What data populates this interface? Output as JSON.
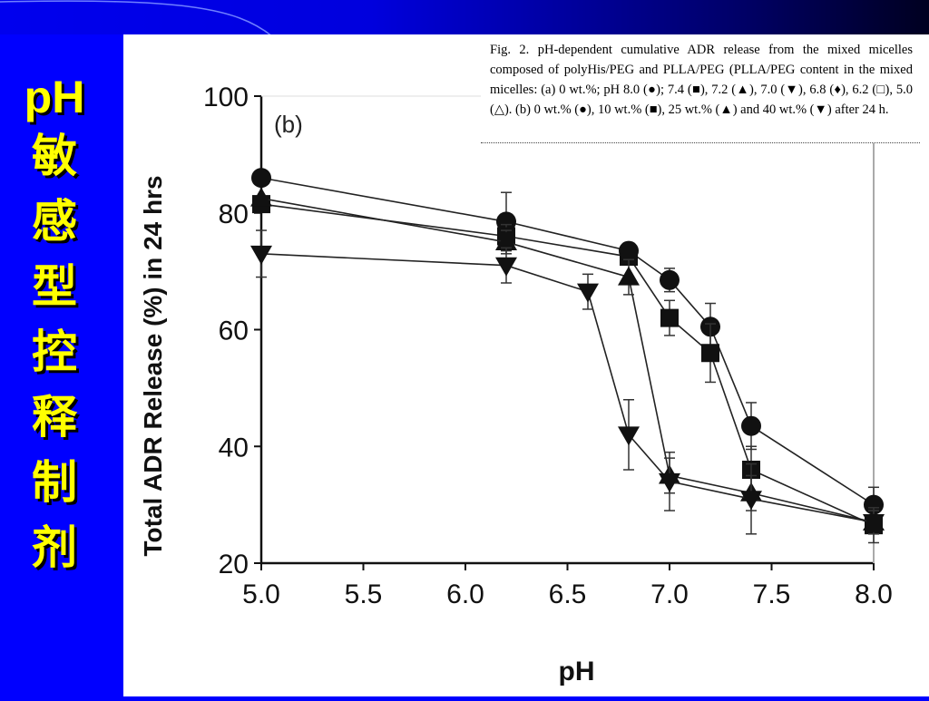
{
  "slide": {
    "title_latin": "pH",
    "title_chars": [
      "敏",
      "感",
      "型",
      "控",
      "释",
      "制",
      "剂"
    ],
    "colors": {
      "background": "#0000ff",
      "title": "#ffff00"
    }
  },
  "caption": "Fig. 2. pH-dependent cumulative ADR release from the mixed micelles composed of polyHis/PEG and PLLA/PEG (PLLA/PEG content in the mixed micelles: (a) 0 wt.%; pH 8.0 (●); 7.4 (■), 7.2 (▲), 7.0 (▼), 6.8 (♦), 6.2 (□), 5.0 (△). (b) 0 wt.% (●), 10 wt.% (■), 25 wt.% (▲) and 40 wt.% (▼) after 24 h.",
  "chart_data": {
    "type": "line",
    "panel_label": "(b)",
    "xlabel": "pH",
    "ylabel": "Total ADR Release (%) in 24 hrs",
    "xlim": [
      5.0,
      8.0
    ],
    "ylim": [
      20,
      100
    ],
    "xticks": [
      "5.0",
      "5.5",
      "6.0",
      "6.5",
      "7.0",
      "7.5",
      "8.0"
    ],
    "yticks": [
      "20",
      "40",
      "60",
      "80",
      "100"
    ],
    "grid": false,
    "series": [
      {
        "marker": "circle",
        "x": [
          5.0,
          6.2,
          6.8,
          7.0,
          7.2,
          7.4,
          8.0
        ],
        "y": [
          86,
          78.5,
          73.5,
          68.5,
          60.5,
          43.5,
          30
        ],
        "err": [
          0,
          5,
          0,
          2,
          4,
          4,
          3
        ]
      },
      {
        "marker": "square",
        "x": [
          5.0,
          6.2,
          6.8,
          7.0,
          7.2,
          7.4,
          8.0
        ],
        "y": [
          81.5,
          76,
          72.5,
          62,
          56,
          36,
          26.5
        ],
        "err": [
          0,
          2,
          0,
          3,
          5,
          4,
          3
        ]
      },
      {
        "marker": "triangle-up",
        "x": [
          5.0,
          6.2,
          6.8,
          7.0,
          7.4,
          8.0
        ],
        "y": [
          82.5,
          75,
          69,
          35,
          32,
          27
        ],
        "err": [
          0,
          2,
          3,
          3,
          3,
          2
        ]
      },
      {
        "marker": "triangle-down",
        "x": [
          5.0,
          6.2,
          6.6,
          6.8,
          7.0,
          7.4,
          8.0
        ],
        "y": [
          73,
          71,
          66.5,
          42,
          34,
          31,
          27
        ],
        "err": [
          4,
          3,
          3,
          6,
          5,
          6,
          2
        ]
      }
    ]
  }
}
